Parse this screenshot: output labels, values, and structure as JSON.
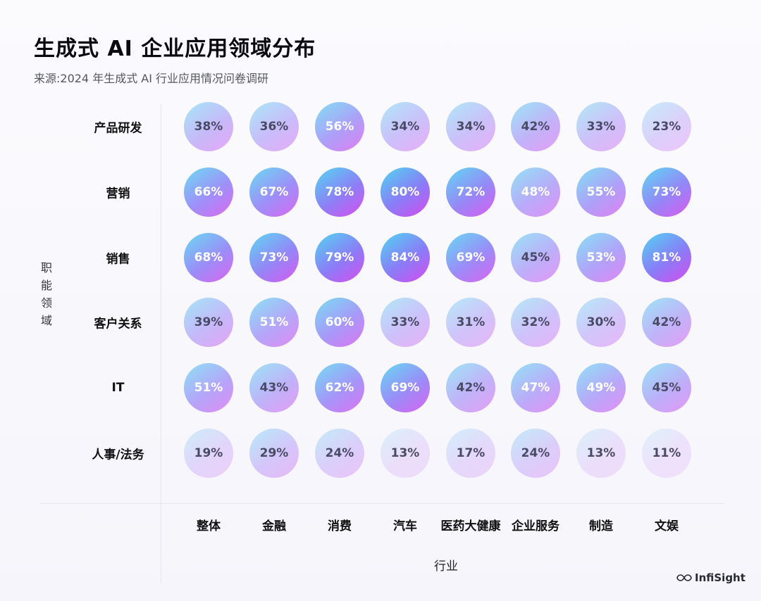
{
  "title": "生成式 AI 企业应用领域分布",
  "subtitle": "来源:2024 年生成式 AI 行业应用情况问卷调研",
  "logo_text": "InfiSight",
  "logo_icon": "infinity-icon",
  "colors": {
    "high_start": "#4fd6f2",
    "high_mid": "#8a7cf7",
    "high_end": "#d74bee",
    "low_start": "#dff2fa",
    "low_end": "#efe2fb",
    "text_light": "#ffffff",
    "text_dark": "#4a4a66"
  },
  "chart_data": {
    "type": "heatmap",
    "title": "生成式 AI 企业应用领域分布",
    "xlabel": "行业",
    "ylabel": "职能领域",
    "categories": [
      "整体",
      "金融",
      "消费",
      "汽车",
      "医药大健康",
      "企业服务",
      "制造",
      "文娱"
    ],
    "rows": [
      "产品研发",
      "营销",
      "销售",
      "客户关系",
      "IT",
      "人事/法务"
    ],
    "unit": "%",
    "values": [
      [
        38,
        36,
        56,
        34,
        34,
        42,
        33,
        23
      ],
      [
        66,
        67,
        78,
        80,
        72,
        48,
        55,
        73
      ],
      [
        68,
        73,
        79,
        84,
        69,
        45,
        53,
        81
      ],
      [
        39,
        51,
        60,
        33,
        31,
        32,
        30,
        42
      ],
      [
        51,
        43,
        62,
        69,
        42,
        47,
        49,
        45
      ],
      [
        19,
        29,
        24,
        13,
        17,
        24,
        13,
        11
      ]
    ]
  }
}
